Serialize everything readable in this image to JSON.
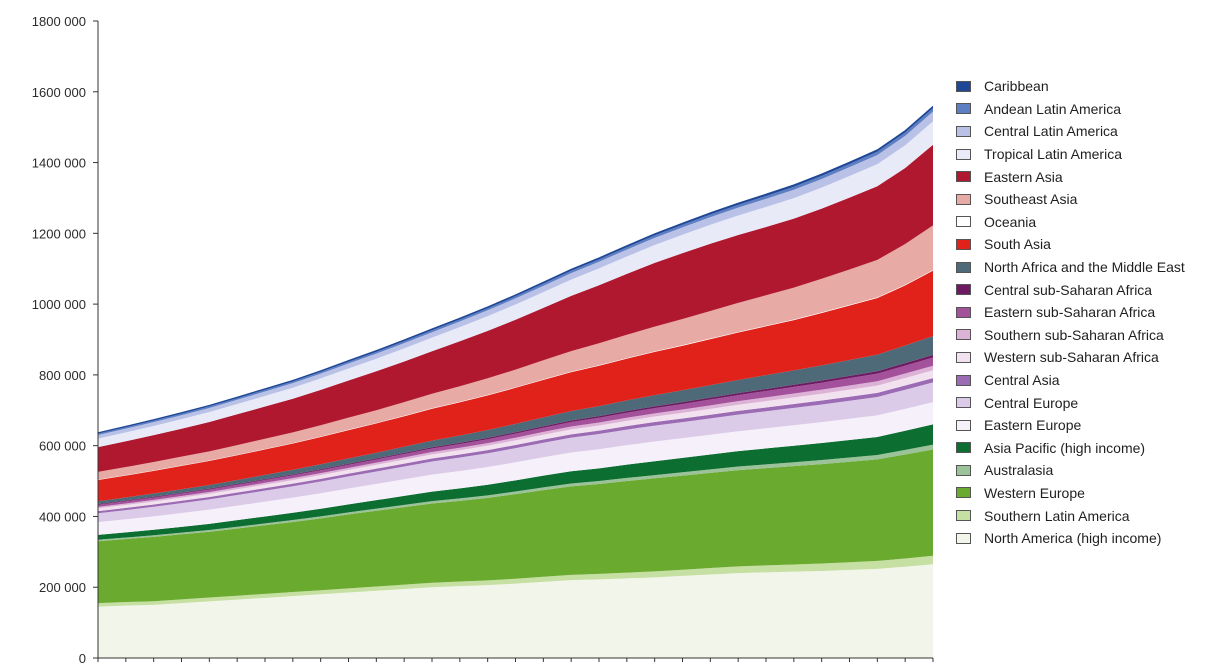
{
  "chart_data": {
    "type": "area",
    "stacked": true,
    "title": "",
    "xlabel": "",
    "ylabel": "",
    "ylim": [
      0,
      1800000
    ],
    "yticks": [
      0,
      200000,
      400000,
      600000,
      800000,
      1000000,
      1200000,
      1400000,
      1600000,
      1800000
    ],
    "ytick_labels": [
      "0",
      "200 000",
      "400 000",
      "600 000",
      "800 000",
      "1000 000",
      "1200 000",
      "1400 000",
      "1600 000",
      "1800 000"
    ],
    "legend_position": "right",
    "grid": false,
    "x": [
      0,
      1,
      2,
      3,
      4,
      5,
      6,
      7,
      8,
      9,
      10,
      11,
      12,
      13,
      14,
      15,
      16,
      17,
      18,
      19,
      20,
      21,
      22,
      23,
      24,
      25,
      26,
      27,
      28,
      29,
      30
    ],
    "series": [
      {
        "name": "North America (high income)",
        "color": "#f2f6ea",
        "values": [
          145000,
          148000,
          150000,
          155000,
          160000,
          165000,
          170000,
          175000,
          180000,
          185000,
          190000,
          195000,
          200000,
          203000,
          206000,
          210000,
          215000,
          220000,
          222000,
          225000,
          228000,
          232000,
          236000,
          240000,
          242000,
          244000,
          246000,
          249000,
          252000,
          258000,
          265000
        ]
      },
      {
        "name": "Southern Latin America",
        "color": "#c6dfa2",
        "values": [
          10000,
          10200,
          10400,
          10600,
          10800,
          11000,
          11200,
          11400,
          11600,
          11800,
          12000,
          12300,
          12600,
          13000,
          13500,
          14000,
          14500,
          15000,
          15600,
          16200,
          16800,
          17500,
          18200,
          18900,
          19600,
          20300,
          21000,
          21700,
          22400,
          23100,
          24000
        ]
      },
      {
        "name": "Western Europe",
        "color": "#6aaa2e",
        "values": [
          175000,
          178000,
          182000,
          184000,
          186000,
          190000,
          194000,
          198000,
          203000,
          209000,
          214000,
          219000,
          224000,
          228000,
          233000,
          239000,
          245000,
          250000,
          254000,
          259000,
          263000,
          266000,
          269000,
          272000,
          275000,
          278000,
          281000,
          284000,
          287000,
          294000,
          300000
        ]
      },
      {
        "name": "Australasia",
        "color": "#9cc29a",
        "values": [
          4000,
          4200,
          4400,
          4600,
          4800,
          5000,
          5200,
          5400,
          5600,
          5800,
          6000,
          6300,
          6600,
          6900,
          7200,
          7500,
          7800,
          8100,
          8400,
          8700,
          9000,
          9400,
          9800,
          10200,
          10600,
          11000,
          11400,
          11800,
          12200,
          13000,
          14000
        ]
      },
      {
        "name": "Asia Pacific (high income)",
        "color": "#0c6e30",
        "values": [
          14000,
          14500,
          15500,
          16500,
          17500,
          18500,
          19500,
          20500,
          21500,
          22500,
          24000,
          25500,
          27000,
          28500,
          30000,
          31500,
          33000,
          34500,
          36000,
          37500,
          39000,
          40500,
          42000,
          43500,
          45000,
          46500,
          48000,
          49500,
          51000,
          54000,
          57000
        ]
      },
      {
        "name": "Eastern Europe",
        "color": "#f5f0fa",
        "values": [
          36000,
          37000,
          38000,
          39000,
          40000,
          41000,
          42000,
          43000,
          44000,
          45000,
          46000,
          47000,
          48000,
          49000,
          50000,
          51000,
          52000,
          53000,
          54000,
          55000,
          56000,
          56000,
          56000,
          56000,
          57000,
          58000,
          59000,
          60000,
          61000,
          62000,
          63000
        ]
      },
      {
        "name": "Central Europe",
        "color": "#dccbe8",
        "values": [
          25000,
          26000,
          27000,
          28000,
          29000,
          30000,
          31000,
          32000,
          33000,
          34000,
          35000,
          36000,
          37000,
          38000,
          39000,
          40000,
          41000,
          42000,
          43000,
          44000,
          45000,
          45000,
          46000,
          47000,
          48000,
          49000,
          50000,
          51000,
          52000,
          54000,
          56000
        ]
      },
      {
        "name": "Central Asia",
        "color": "#9b6bb4",
        "values": [
          6000,
          6200,
          6400,
          6600,
          6800,
          7000,
          7200,
          7400,
          7600,
          7800,
          8000,
          8200,
          8400,
          8600,
          8800,
          9000,
          9200,
          9400,
          9600,
          9800,
          10000,
          10200,
          10400,
          10600,
          10800,
          11000,
          11200,
          11400,
          11600,
          11800,
          12000
        ]
      },
      {
        "name": "Western sub-Saharan Africa",
        "color": "#f2e1ee",
        "values": [
          8000,
          8300,
          8600,
          8900,
          9200,
          9500,
          9800,
          10100,
          10400,
          10700,
          11000,
          11400,
          11800,
          12200,
          12600,
          13000,
          13500,
          14000,
          14500,
          15000,
          15500,
          16100,
          16700,
          17300,
          17900,
          18500,
          19200,
          19900,
          20600,
          21300,
          22000
        ]
      },
      {
        "name": "Southern sub-Saharan Africa",
        "color": "#dcb3d6",
        "values": [
          4000,
          4200,
          4400,
          4600,
          4800,
          5000,
          5200,
          5400,
          5600,
          5800,
          6000,
          6300,
          6600,
          6900,
          7200,
          7500,
          7800,
          8100,
          8400,
          8700,
          9000,
          9400,
          9800,
          10200,
          10600,
          11000,
          11400,
          11800,
          12200,
          12600,
          13000
        ]
      },
      {
        "name": "Eastern sub-Saharan Africa",
        "color": "#a3519a",
        "values": [
          6000,
          6300,
          6600,
          6900,
          7200,
          7500,
          7800,
          8100,
          8400,
          8700,
          9000,
          9500,
          10000,
          10500,
          11000,
          11500,
          12000,
          12700,
          13400,
          14100,
          14800,
          15600,
          16400,
          17200,
          18000,
          18800,
          19700,
          20600,
          21500,
          22400,
          23000
        ]
      },
      {
        "name": "Central sub-Saharan Africa",
        "color": "#6e1a62",
        "values": [
          2000,
          2100,
          2200,
          2300,
          2400,
          2500,
          2600,
          2700,
          2800,
          2900,
          3000,
          3200,
          3400,
          3600,
          3800,
          4000,
          4200,
          4400,
          4600,
          4800,
          5000,
          5200,
          5400,
          5600,
          5800,
          6000,
          6300,
          6600,
          6900,
          7200,
          7500
        ]
      },
      {
        "name": "North Africa and the Middle East",
        "color": "#4e6a78",
        "values": [
          8000,
          8600,
          9200,
          9800,
          10400,
          11000,
          12000,
          13000,
          14000,
          15000,
          16000,
          17500,
          19000,
          20500,
          22000,
          23500,
          25000,
          26700,
          28400,
          30100,
          31800,
          33600,
          35400,
          37200,
          39000,
          40800,
          42800,
          44800,
          46800,
          49500,
          53000
        ]
      },
      {
        "name": "South Asia",
        "color": "#e0221a",
        "values": [
          60000,
          62000,
          64000,
          66000,
          68000,
          70000,
          72000,
          74000,
          77000,
          80000,
          83000,
          86000,
          90000,
          94000,
          98000,
          102000,
          106000,
          110000,
          114000,
          118000,
          122000,
          126000,
          130000,
          134000,
          138000,
          142000,
          148000,
          154000,
          160000,
          170000,
          185000
        ]
      },
      {
        "name": "Oceania",
        "color": "#ffffff",
        "values": [
          1000,
          1020,
          1040,
          1060,
          1080,
          1100,
          1120,
          1140,
          1160,
          1180,
          1200,
          1230,
          1260,
          1290,
          1320,
          1350,
          1380,
          1410,
          1440,
          1470,
          1500,
          1540,
          1580,
          1620,
          1660,
          1700,
          1740,
          1780,
          1820,
          1860,
          1900
        ]
      },
      {
        "name": "Southeast Asia",
        "color": "#e8aaa4",
        "values": [
          22000,
          23000,
          24000,
          25000,
          26000,
          27500,
          29000,
          30500,
          32000,
          34000,
          36000,
          38500,
          41000,
          44000,
          47000,
          50000,
          54000,
          58000,
          62000,
          66000,
          70000,
          74000,
          78000,
          82000,
          86000,
          90000,
          95000,
          100000,
          106000,
          115000,
          126000
        ]
      },
      {
        "name": "Eastern Asia",
        "color": "#b01830",
        "values": [
          70000,
          73000,
          76000,
          79000,
          83000,
          87000,
          91000,
          95000,
          100000,
          105000,
          110000,
          115000,
          120000,
          127000,
          134000,
          141000,
          148000,
          156000,
          164000,
          172000,
          180000,
          186000,
          190000,
          192000,
          193000,
          195000,
          198000,
          203000,
          208000,
          215000,
          228000
        ]
      },
      {
        "name": "Tropical Latin America",
        "color": "#e8eaf8",
        "values": [
          24000,
          25000,
          26000,
          27000,
          28000,
          29000,
          30000,
          31000,
          32500,
          34000,
          35500,
          37000,
          38500,
          40000,
          41500,
          43000,
          44500,
          46000,
          47500,
          49000,
          50500,
          52000,
          53500,
          55000,
          56500,
          58000,
          59500,
          61000,
          62500,
          64000,
          66000
        ]
      },
      {
        "name": "Central Latin America",
        "color": "#b9c2e6",
        "values": [
          10000,
          10400,
          10800,
          11200,
          11600,
          12000,
          12500,
          13000,
          13500,
          14000,
          14500,
          15000,
          15500,
          16000,
          16600,
          17200,
          17800,
          18400,
          19000,
          19600,
          20200,
          20900,
          21600,
          22300,
          23000,
          23700,
          24400,
          25100,
          25800,
          26600,
          27500
        ]
      },
      {
        "name": "Andean Latin America",
        "color": "#5e7ec4",
        "values": [
          4000,
          4100,
          4200,
          4300,
          4400,
          4500,
          4600,
          4700,
          4800,
          4900,
          5000,
          5200,
          5400,
          5600,
          5800,
          6000,
          6200,
          6400,
          6600,
          6800,
          7000,
          7300,
          7600,
          7900,
          8200,
          8500,
          8800,
          9100,
          9400,
          9700,
          10000
        ]
      },
      {
        "name": "Caribbean",
        "color": "#1e4796",
        "values": [
          4000,
          4100,
          4200,
          4300,
          4400,
          4500,
          4600,
          4700,
          4800,
          4900,
          5000,
          5100,
          5200,
          5300,
          5400,
          5500,
          5600,
          5700,
          5800,
          5900,
          6000,
          6100,
          6200,
          6300,
          6400,
          6500,
          6600,
          6700,
          6800,
          6900,
          7000
        ]
      }
    ]
  }
}
